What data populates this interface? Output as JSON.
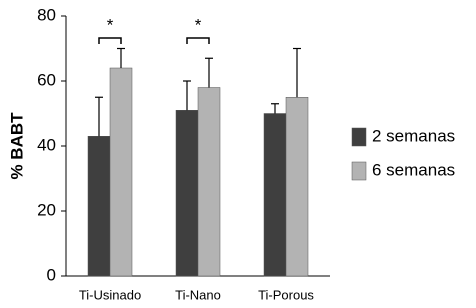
{
  "chart_data": {
    "type": "bar",
    "y_label": "% BABT",
    "categories": [
      "Ti-Usinado",
      "Ti-Nano",
      "Ti-Porous"
    ],
    "series": [
      {
        "name": "2 semanas",
        "color": "#3f3f3f",
        "values": [
          43,
          51,
          50
        ],
        "errors": [
          12,
          9,
          3
        ]
      },
      {
        "name": "6 semanas",
        "color": "#b3b3b3",
        "values": [
          64,
          58,
          55
        ],
        "errors": [
          6,
          9,
          15
        ]
      }
    ],
    "annotations": [
      {
        "text": "*",
        "category": 0
      },
      {
        "text": "*",
        "category": 1
      }
    ],
    "ylim": [
      0,
      80
    ],
    "yticks": [
      0,
      20,
      40,
      60,
      80
    ],
    "grid": false,
    "legend": "right"
  }
}
